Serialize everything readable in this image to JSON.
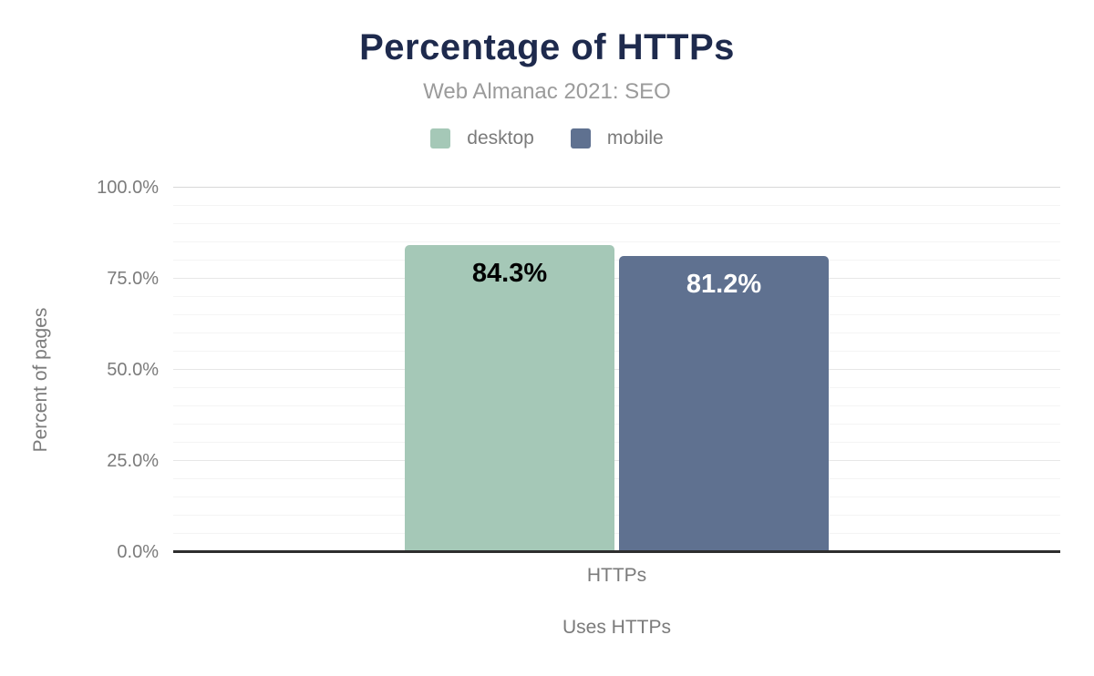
{
  "chart_data": {
    "type": "bar",
    "title": "Percentage of HTTPs",
    "subtitle": "Web Almanac 2021: SEO",
    "categories": [
      "HTTPs"
    ],
    "series": [
      {
        "name": "desktop",
        "values": [
          84.3
        ],
        "labels": [
          "84.3%"
        ],
        "color": "#a5c8b7",
        "label_color": "#000000"
      },
      {
        "name": "mobile",
        "values": [
          81.2
        ],
        "labels": [
          "81.2%"
        ],
        "color": "#5f7190",
        "label_color": "#ffffff"
      }
    ],
    "xlabel": "Uses HTTPs",
    "ylabel": "Percent of pages",
    "ylim": [
      0,
      100
    ],
    "yticks": [
      {
        "value": 100,
        "label": "100.0%"
      },
      {
        "value": 75,
        "label": "75.0%"
      },
      {
        "value": 50,
        "label": "50.0%"
      },
      {
        "value": 25,
        "label": "25.0%"
      },
      {
        "value": 0,
        "label": "0.0%"
      }
    ],
    "grid": {
      "minor_step": 5,
      "major_step": 25,
      "grid_on": true
    },
    "legend_position": "top"
  },
  "colors": {
    "background": "#ffffff",
    "title": "#1e2a4d",
    "subtitle": "#9b9b9b",
    "axis_text": "#7b7b7b",
    "axis_line": "#2e2e2e",
    "grid_top": "#d8d8d8",
    "grid_major": "#e7e7e7",
    "grid_minor": "#f4f4f4"
  }
}
